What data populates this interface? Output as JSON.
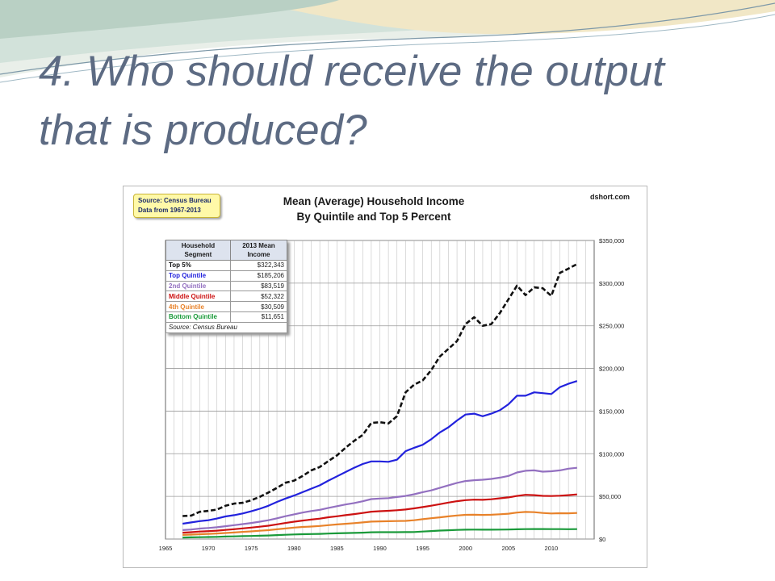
{
  "slide": {
    "title_line1": "4. Who should receive the output",
    "title_line2": "that is produced?"
  },
  "colors": {
    "title": "#5d6b83",
    "wave_teal": "#a8c4b8",
    "wave_sand": "#e8d8a8"
  },
  "chart_data": {
    "type": "line",
    "title": "Mean (Average) Household Income",
    "subtitle": "By Quintile and Top 5 Percent",
    "source_box": [
      "Source: Census Bureau",
      "Data from 1967-2013"
    ],
    "site": "dshort.com",
    "y_axis_side": "right",
    "ylim": [
      0,
      350000
    ],
    "xlim": [
      1965,
      2015
    ],
    "yticks": [
      "$350,000",
      "$300,000",
      "$250,000",
      "$200,000",
      "$150,000",
      "$100,000",
      "$50,000",
      "$0"
    ],
    "ytick_values": [
      350000,
      300000,
      250000,
      200000,
      150000,
      100000,
      50000,
      0
    ],
    "xticks": [
      "1965",
      "1970",
      "1975",
      "1980",
      "1985",
      "1990",
      "1995",
      "2000",
      "2005",
      "2010"
    ],
    "xtick_values": [
      1965,
      1970,
      1975,
      1980,
      1985,
      1990,
      1995,
      2000,
      2005,
      2010
    ],
    "grid": "vertical lines every year, horizontal lines every $50,000",
    "legend_table": {
      "headers": [
        "Household Segment",
        "2013 Mean Income"
      ],
      "rows": [
        {
          "segment": "Top 5%",
          "income": "$322,343",
          "color": "#111111"
        },
        {
          "segment": "Top Quintile",
          "income": "$185,206",
          "color": "#2222dd"
        },
        {
          "segment": "2nd Quintile",
          "income": "$83,519",
          "color": "#9370c0"
        },
        {
          "segment": "Middle Quintile",
          "income": "$52,322",
          "color": "#cc1111"
        },
        {
          "segment": "4th Quintile",
          "income": "$30,509",
          "color": "#e8822a"
        },
        {
          "segment": "Bottom Quintile",
          "income": "$11,651",
          "color": "#1a9a3a"
        }
      ],
      "footer": "Source: Census Bureau"
    },
    "x": [
      1967,
      1968,
      1969,
      1970,
      1971,
      1972,
      1973,
      1974,
      1975,
      1976,
      1977,
      1978,
      1979,
      1980,
      1981,
      1982,
      1983,
      1984,
      1985,
      1986,
      1987,
      1988,
      1989,
      1990,
      1991,
      1992,
      1993,
      1994,
      1995,
      1996,
      1997,
      1998,
      1999,
      2000,
      2001,
      2002,
      2003,
      2004,
      2005,
      2006,
      2007,
      2008,
      2009,
      2010,
      2011,
      2012,
      2013
    ],
    "series": [
      {
        "name": "Top 5%",
        "color": "#111111",
        "dashed": true,
        "values": [
          27000,
          27500,
          32000,
          33000,
          34500,
          39000,
          41500,
          42500,
          45500,
          49500,
          54500,
          60000,
          66000,
          68500,
          74000,
          80500,
          84500,
          91500,
          98000,
          107000,
          115000,
          122000,
          136000,
          137000,
          135500,
          144000,
          172000,
          181000,
          186000,
          198000,
          214000,
          223000,
          232000,
          252000,
          260000,
          250000,
          252000,
          265000,
          281000,
          297000,
          286000,
          295000,
          294000,
          285000,
          312000,
          317000,
          322343
        ]
      },
      {
        "name": "Top Quintile",
        "color": "#2222dd",
        "dashed": false,
        "values": [
          18000,
          19500,
          21000,
          22000,
          24000,
          26500,
          28000,
          30000,
          32500,
          35500,
          39000,
          43500,
          47500,
          51000,
          55000,
          59000,
          63000,
          68500,
          73500,
          78500,
          83500,
          88000,
          91000,
          91000,
          90500,
          93000,
          103000,
          107000,
          110500,
          117000,
          125000,
          131000,
          139000,
          146000,
          147000,
          144000,
          147000,
          151000,
          158000,
          168000,
          168000,
          172000,
          171000,
          170000,
          178000,
          182000,
          185206
        ]
      },
      {
        "name": "2nd Quintile",
        "color": "#9370c0",
        "dashed": false,
        "values": [
          10500,
          11200,
          12300,
          13000,
          13800,
          15000,
          16300,
          17500,
          18800,
          20300,
          22000,
          24300,
          26800,
          28900,
          31000,
          32800,
          34200,
          36500,
          38500,
          40500,
          42200,
          44300,
          46800,
          47500,
          48000,
          49300,
          50500,
          52500,
          55000,
          57000,
          60000,
          63000,
          65800,
          68000,
          69000,
          69500,
          70500,
          72000,
          74000,
          78000,
          80000,
          80500,
          79000,
          79500,
          80500,
          82500,
          83519
        ]
      },
      {
        "name": "Middle Quintile",
        "color": "#cc1111",
        "dashed": false,
        "values": [
          7500,
          8000,
          8800,
          9300,
          9800,
          10700,
          11500,
          12500,
          13400,
          14500,
          15600,
          17200,
          18800,
          20300,
          21700,
          22800,
          23900,
          25500,
          26700,
          28000,
          29200,
          30600,
          32100,
          32600,
          33100,
          33800,
          34600,
          35900,
          37500,
          39100,
          40900,
          42800,
          44400,
          45600,
          46200,
          46000,
          46600,
          47800,
          48800,
          50500,
          51800,
          51500,
          50600,
          50400,
          50800,
          51500,
          52322
        ]
      },
      {
        "name": "4th Quintile",
        "color": "#e8822a",
        "dashed": false,
        "values": [
          4800,
          5200,
          5700,
          6100,
          6500,
          7100,
          7700,
          8400,
          9000,
          9700,
          10400,
          11400,
          12400,
          13400,
          14200,
          14700,
          15300,
          16300,
          17100,
          17900,
          18600,
          19500,
          20400,
          20700,
          20900,
          21100,
          21300,
          22000,
          23300,
          24400,
          25400,
          26600,
          27600,
          28400,
          28500,
          28300,
          28500,
          29000,
          29700,
          31000,
          31800,
          31500,
          30600,
          30000,
          30300,
          30200,
          30509
        ]
      },
      {
        "name": "Bottom Quintile",
        "color": "#1a9a3a",
        "dashed": false,
        "values": [
          1800,
          2000,
          2200,
          2400,
          2600,
          2900,
          3100,
          3400,
          3600,
          3900,
          4200,
          4600,
          5000,
          5400,
          5700,
          5900,
          6100,
          6400,
          6700,
          7000,
          7200,
          7500,
          7900,
          8000,
          8000,
          8000,
          8100,
          8200,
          8800,
          9400,
          9900,
          10300,
          10700,
          11000,
          11100,
          11000,
          11000,
          11100,
          11200,
          11400,
          11600,
          11700,
          11700,
          11600,
          11600,
          11500,
          11651
        ]
      }
    ]
  }
}
